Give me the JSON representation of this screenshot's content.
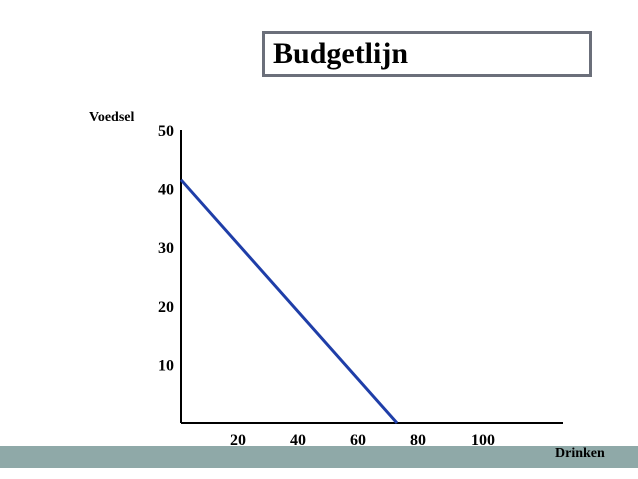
{
  "chart_data": {
    "type": "line",
    "title": "Budgetlijn",
    "xlabel": "Drinken",
    "ylabel": "Voedsel",
    "x_ticks": [
      20,
      40,
      60,
      80,
      100
    ],
    "y_ticks": [
      10,
      20,
      30,
      40,
      50
    ],
    "xlim": [
      0,
      120
    ],
    "ylim": [
      0,
      50
    ],
    "grid": false,
    "series": [
      {
        "x": [
          0,
          72
        ],
        "y": [
          41.5,
          0
        ],
        "color": "#1f3ea8"
      }
    ]
  }
}
